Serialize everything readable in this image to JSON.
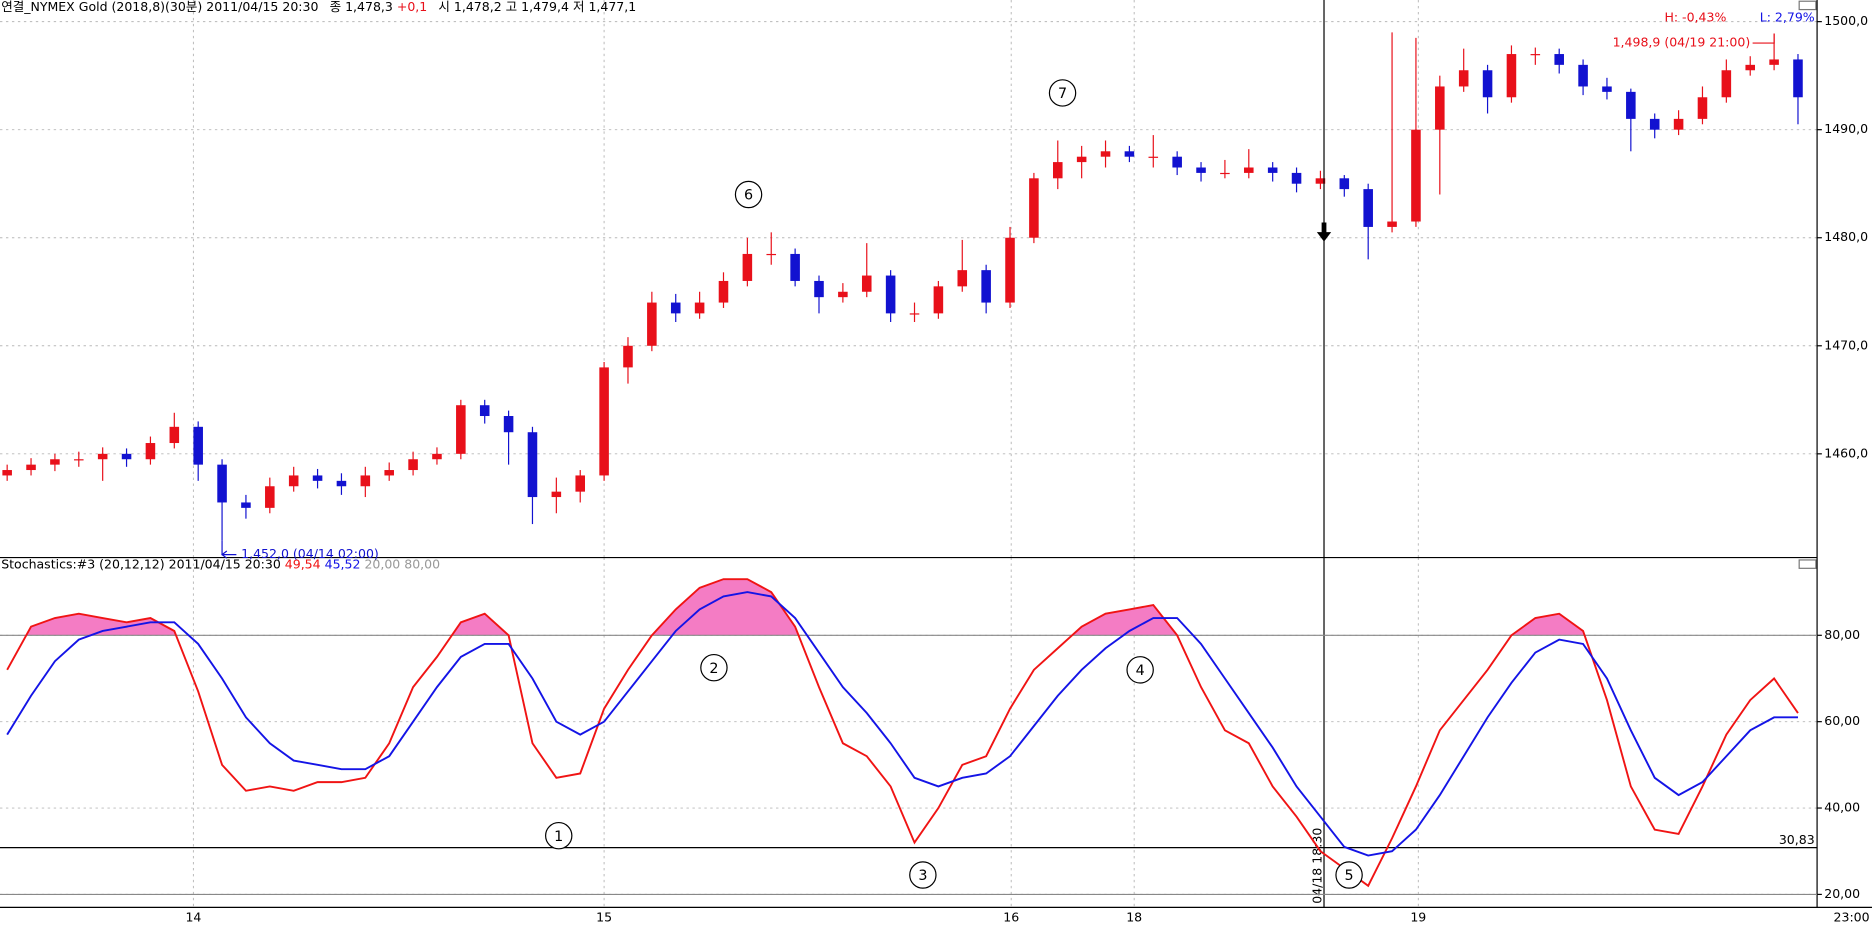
{
  "chart_data": [
    {
      "type": "candlestick",
      "header": {
        "symbol": "연결_NYMEX Gold (2018,8)(30분)",
        "datetime": "2011/04/15 20:30",
        "close_label": "종",
        "close": "1,478,3",
        "change": "+0,1",
        "open_label": "시",
        "open": "1,478,2",
        "high_label": "고",
        "high": "1,479,4",
        "low_label": "저",
        "low": "1,477,1"
      },
      "open": [
        1458.0,
        1458.5,
        1459.0,
        1459.5,
        1459.5,
        1460.0,
        1459.5,
        1461.0,
        1462.5,
        1459.0,
        1455.5,
        1455.0,
        1457.0,
        1458.0,
        1457.5,
        1457.0,
        1458.0,
        1458.5,
        1459.5,
        1460.0,
        1464.5,
        1463.5,
        1462.0,
        1456.0,
        1456.5,
        1458.0,
        1468.0,
        1470.0,
        1474.0,
        1473.0,
        1474.0,
        1476.0,
        1478.5,
        1478.5,
        1476.0,
        1474.5,
        1475.0,
        1476.5,
        1473.0,
        1473.0,
        1475.5,
        1477.0,
        1474.0,
        1480.0,
        1485.5,
        1487.0,
        1487.5,
        1488.0,
        1487.5,
        1487.5,
        1486.5,
        1486.0,
        1486.0,
        1486.5,
        1486.0,
        1485.0,
        1485.5,
        1484.5,
        1481.0,
        1481.5,
        1490.0,
        1494.0,
        1495.5,
        1493.0,
        1497.0,
        1497.0,
        1496.0,
        1494.0,
        1493.5,
        1491.0,
        1490.0,
        1491.0,
        1493.0,
        1495.5,
        1496.0,
        1496.5
      ],
      "high": [
        1459.0,
        1459.6,
        1460.0,
        1460.2,
        1460.6,
        1460.5,
        1461.6,
        1463.8,
        1463.0,
        1459.5,
        1456.2,
        1457.8,
        1458.8,
        1458.6,
        1458.2,
        1458.8,
        1459.2,
        1460.2,
        1460.6,
        1465.0,
        1465.0,
        1464.0,
        1462.5,
        1457.8,
        1458.5,
        1468.5,
        1470.8,
        1475.0,
        1474.8,
        1475.0,
        1476.8,
        1480.0,
        1480.5,
        1479.0,
        1476.5,
        1475.8,
        1479.5,
        1477.0,
        1474.0,
        1476.0,
        1479.8,
        1477.5,
        1481.0,
        1486.0,
        1489.0,
        1488.5,
        1489.0,
        1488.5,
        1489.5,
        1488.0,
        1487.0,
        1487.2,
        1488.2,
        1487.0,
        1486.5,
        1486.2,
        1485.8,
        1485.0,
        1499.0,
        1498.5,
        1495.0,
        1497.5,
        1496.0,
        1497.8,
        1497.6,
        1497.5,
        1496.5,
        1494.8,
        1493.8,
        1491.5,
        1491.8,
        1494.0,
        1496.5,
        1496.8,
        1498.9,
        1497.0
      ],
      "low": [
        1457.5,
        1458.0,
        1458.4,
        1458.8,
        1457.5,
        1458.8,
        1459.0,
        1460.5,
        1457.5,
        1452.0,
        1454.0,
        1454.5,
        1456.5,
        1456.8,
        1456.2,
        1456.0,
        1457.5,
        1458.0,
        1459.0,
        1459.5,
        1462.8,
        1459.0,
        1453.5,
        1454.5,
        1455.5,
        1457.5,
        1466.5,
        1469.5,
        1472.2,
        1472.5,
        1473.5,
        1475.5,
        1477.5,
        1475.5,
        1473.0,
        1474.0,
        1474.5,
        1472.2,
        1472.2,
        1472.5,
        1475.0,
        1473.0,
        1473.5,
        1479.5,
        1484.5,
        1485.5,
        1486.5,
        1487.0,
        1486.5,
        1485.8,
        1485.2,
        1485.5,
        1485.5,
        1485.2,
        1484.2,
        1484.5,
        1483.8,
        1478.0,
        1480.5,
        1481.0,
        1484.0,
        1493.5,
        1491.5,
        1492.5,
        1496.0,
        1495.2,
        1493.2,
        1492.8,
        1488.0,
        1489.2,
        1489.5,
        1490.5,
        1492.5,
        1495.0,
        1495.5,
        1490.5
      ],
      "close": [
        1458.5,
        1459.0,
        1459.5,
        1459.5,
        1460.0,
        1459.5,
        1461.0,
        1462.5,
        1459.0,
        1455.5,
        1455.0,
        1457.0,
        1458.0,
        1457.5,
        1457.0,
        1458.0,
        1458.5,
        1459.5,
        1460.0,
        1464.5,
        1463.5,
        1462.0,
        1456.0,
        1456.5,
        1458.0,
        1468.0,
        1470.0,
        1474.0,
        1473.0,
        1474.0,
        1476.0,
        1478.5,
        1478.5,
        1476.0,
        1474.5,
        1475.0,
        1476.5,
        1473.0,
        1473.0,
        1475.5,
        1477.0,
        1474.0,
        1480.0,
        1485.5,
        1487.0,
        1487.5,
        1488.0,
        1487.5,
        1487.5,
        1486.5,
        1486.0,
        1486.0,
        1486.5,
        1486.0,
        1485.0,
        1485.5,
        1484.5,
        1481.0,
        1481.5,
        1490.0,
        1494.0,
        1495.5,
        1493.0,
        1497.0,
        1497.0,
        1496.0,
        1494.0,
        1493.5,
        1491.0,
        1490.0,
        1491.0,
        1493.0,
        1495.5,
        1496.0,
        1496.5,
        1493.0
      ],
      "up_color": "#e8101a",
      "down_color": "#1212d0",
      "xlim": [
        -0.3,
        75.8
      ],
      "ylim": [
        1450.4,
        1502.0
      ],
      "yticks": [
        {
          "value": 1460,
          "label": "1460,0"
        },
        {
          "value": 1470,
          "label": "1470,0"
        },
        {
          "value": 1480,
          "label": "1480,0"
        },
        {
          "value": 1490,
          "label": "1490,0"
        },
        {
          "value": 1500,
          "label": "1500,0"
        }
      ],
      "xticks": [
        {
          "value": 7.8,
          "label": "14"
        },
        {
          "value": 25,
          "label": "15"
        },
        {
          "value": 42.05,
          "label": "16"
        },
        {
          "value": 47.2,
          "label": "18"
        },
        {
          "value": 59.1,
          "label": "19"
        }
      ],
      "grid": true,
      "annotations": [
        {
          "label": "6",
          "x": 31.05,
          "y": 1484.0
        },
        {
          "label": "7",
          "x": 44.2,
          "y": 1493.4
        }
      ],
      "low_marker": {
        "label": "1,452,0 (04/14 02:00)",
        "x": 9,
        "y": 1452.0
      },
      "high_marker": {
        "label": "1,498,9 (04/19 21:00)",
        "x": 74,
        "y": 1498.9
      },
      "range_labels": {
        "high": "H: -0,43%",
        "low": "L: 2,79%"
      },
      "crosshair": {
        "x": 55.15,
        "label": "04/18 18:30",
        "arrow_y": 1480.3
      }
    },
    {
      "type": "line",
      "title": "Stochastics:#3  (20,12,12) 2011/04/15 20:30",
      "readout": {
        "k": "49,54",
        "d": "45,52",
        "levels": "20,00 80,00"
      },
      "series": [
        {
          "color": "#f01414",
          "values": [
            72,
            82,
            84,
            85,
            84,
            83,
            84,
            81,
            67,
            50,
            44,
            45,
            44,
            46,
            46,
            47,
            55,
            68,
            75,
            83,
            85,
            80,
            55,
            47,
            48,
            63,
            72,
            80,
            86,
            91,
            93,
            93,
            90,
            82,
            68,
            55,
            52,
            45,
            32,
            40,
            50,
            52,
            63,
            72,
            77,
            82,
            85,
            86,
            87,
            80,
            68,
            58,
            55,
            45,
            38,
            30,
            26,
            22,
            33,
            45,
            58,
            65,
            72,
            80,
            84,
            85,
            81,
            65,
            45,
            35,
            34,
            45,
            57,
            65,
            70,
            62
          ]
        },
        {
          "color": "#1414e6",
          "values": [
            57,
            66,
            74,
            79,
            81,
            82,
            83,
            83,
            78,
            70,
            61,
            55,
            51,
            50,
            49,
            49,
            52,
            60,
            68,
            75,
            78,
            78,
            70,
            60,
            57,
            60,
            67,
            74,
            81,
            86,
            89,
            90,
            89,
            84,
            76,
            68,
            62,
            55,
            47,
            45,
            47,
            48,
            52,
            59,
            66,
            72,
            77,
            81,
            84,
            84,
            78,
            70,
            62,
            54,
            45,
            38,
            31,
            29,
            30,
            35,
            43,
            52,
            61,
            69,
            76,
            79,
            78,
            70,
            58,
            47,
            43,
            46,
            52,
            58,
            61,
            61
          ]
        }
      ],
      "xlim": [
        -0.3,
        75.8
      ],
      "ylim": [
        17,
        98
      ],
      "yticks": [
        {
          "value": 20,
          "label": "20,00"
        },
        {
          "value": 40,
          "label": "40,00"
        },
        {
          "value": 60,
          "label": "60,00"
        },
        {
          "value": 80,
          "label": "80,00"
        }
      ],
      "grid": true,
      "hlines": [
        {
          "value": 80
        },
        {
          "value": 30.83,
          "label": "30,83"
        },
        {
          "value": 20
        }
      ],
      "overbought": 80,
      "overbought_color": "#f47cc4",
      "annotations": [
        {
          "label": "1",
          "x": 23.1,
          "y": 33.6
        },
        {
          "label": "2",
          "x": 29.6,
          "y": 72.5
        },
        {
          "label": "3",
          "x": 38.35,
          "y": 24.5
        },
        {
          "label": "4",
          "x": 47.45,
          "y": 72
        },
        {
          "label": "5",
          "x": 56.2,
          "y": 24.5
        }
      ],
      "time_label": "23:00"
    }
  ]
}
